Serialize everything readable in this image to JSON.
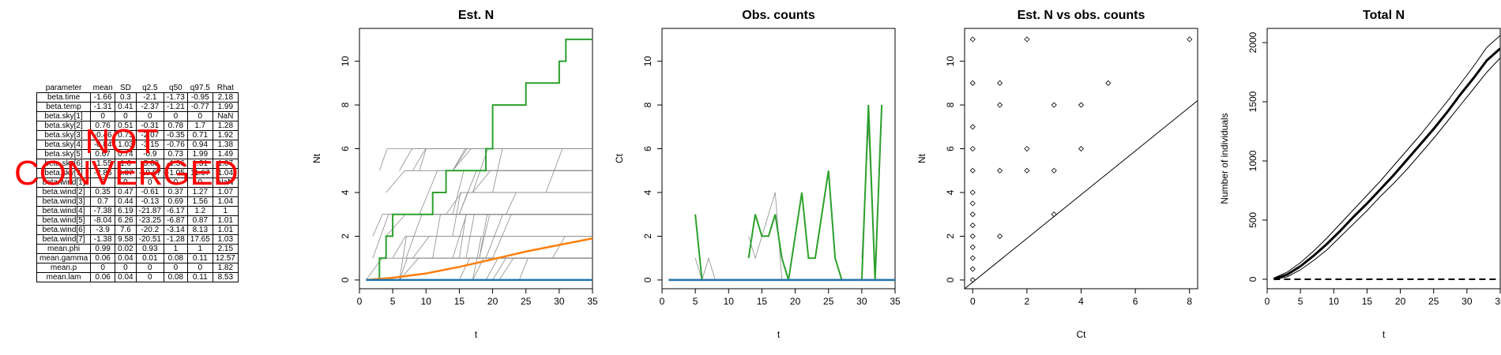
{
  "table": {
    "columns": [
      "parameter",
      "mean",
      "SD",
      "q2.5",
      "q50",
      "q97.5",
      "Rhat"
    ],
    "rows": [
      [
        "beta.time",
        "-1.66",
        "0.3",
        "-2.1",
        "-1.73",
        "-0.95",
        "2.18"
      ],
      [
        "beta.temp",
        "-1.31",
        "0.41",
        "-2.37",
        "-1.21",
        "-0.77",
        "1.99"
      ],
      [
        "beta.sky[1]",
        "0",
        "0",
        "0",
        "0",
        "0",
        "NaN"
      ],
      [
        "beta.sky[2]",
        "0.76",
        "0.51",
        "-0.31",
        "0.78",
        "1.7",
        "1.28"
      ],
      [
        "beta.sky[3]",
        "-0.46",
        "0.73",
        "-2.07",
        "-0.35",
        "0.71",
        "1.92"
      ],
      [
        "beta.sky[4]",
        "-0.84",
        "1.03",
        "-3.15",
        "-0.76",
        "0.94",
        "1.38"
      ],
      [
        "beta.sky[5]",
        "0.67",
        "0.74",
        "-0.9",
        "0.73",
        "1.99",
        "1.49"
      ],
      [
        "beta.sky[6]",
        "-1.55",
        "1.6",
        "-5.03",
        "-1.36",
        "1.31",
        "1.07"
      ],
      [
        "beta.sky[7]",
        "-2.86",
        "6.07",
        "-19.57",
        "-1.05",
        "11.67",
        "1.04"
      ],
      [
        "beta.wind[1]",
        "0",
        "0",
        "0",
        "0",
        "0",
        "NaN"
      ],
      [
        "beta.wind[2]",
        "0.35",
        "0.47",
        "-0.61",
        "0.37",
        "1.27",
        "1.07"
      ],
      [
        "beta.wind[3]",
        "0.7",
        "0.44",
        "-0.13",
        "0.69",
        "1.56",
        "1.04"
      ],
      [
        "beta.wind[4]",
        "-7.38",
        "6.19",
        "-21.87",
        "-6.17",
        "1.2",
        "1"
      ],
      [
        "beta.wind[5]",
        "-8.04",
        "6.26",
        "-23.25",
        "-6.87",
        "0.87",
        "1.01"
      ],
      [
        "beta.wind[6]",
        "-3.9",
        "7.6",
        "-20.2",
        "-3.14",
        "8.13",
        "1.01"
      ],
      [
        "beta.wind[7]",
        "-1.38",
        "9.58",
        "-20.51",
        "-1.28",
        "17.65",
        "1.03"
      ],
      [
        "mean.phi",
        "0.99",
        "0.02",
        "0.93",
        "1",
        "1",
        "2.15"
      ],
      [
        "mean.gamma",
        "0.06",
        "0.04",
        "0.01",
        "0.08",
        "0.11",
        "12.57"
      ],
      [
        "mean.p",
        "0",
        "0",
        "0",
        "0",
        "0",
        "1.82"
      ],
      [
        "mean.lam",
        "0.06",
        "0.04",
        "0",
        "0.08",
        "0.11",
        "8.53"
      ]
    ]
  },
  "overlay_text": "NOT CONVERGED",
  "colors": {
    "green": "#2ca02c",
    "orange": "#ff7f0e",
    "blue": "#1f77b4",
    "gray": "#8c8c8c",
    "red": "#ff0000"
  },
  "chart_data": [
    {
      "type": "line",
      "title": "Est. N",
      "xlabel": "t",
      "ylabel": "Nt",
      "xlim": [
        0,
        35
      ],
      "ylim": [
        -0.4,
        11.5
      ],
      "xticks": [
        0,
        5,
        10,
        15,
        20,
        25,
        30,
        35
      ],
      "yticks": [
        0,
        2,
        4,
        6,
        8,
        10
      ],
      "series": [
        {
          "color": "green",
          "x": [
            1,
            2,
            3,
            4,
            5,
            6,
            7,
            8,
            9,
            10,
            11,
            12,
            13,
            14,
            15,
            16,
            17,
            18,
            19,
            20,
            21,
            22,
            23,
            24,
            25,
            26,
            27,
            28,
            29,
            30,
            31,
            32,
            33,
            34,
            35
          ],
          "y": [
            0,
            0,
            1,
            2,
            3,
            3,
            3,
            3,
            3,
            3,
            4,
            4,
            5,
            5,
            5,
            5,
            5,
            5,
            6,
            8,
            8,
            8,
            8,
            8,
            9,
            9,
            9,
            9,
            9,
            10,
            11,
            11,
            11,
            11,
            11
          ]
        },
        {
          "color": "orange",
          "x": [
            1,
            5,
            10,
            15,
            20,
            25,
            30,
            35
          ],
          "y": [
            0,
            0.1,
            0.3,
            0.6,
            0.95,
            1.3,
            1.6,
            1.9
          ]
        },
        {
          "color": "blue",
          "x": [
            1,
            35
          ],
          "y": [
            0,
            0
          ]
        }
      ]
    },
    {
      "type": "line",
      "title": "Obs. counts",
      "xlabel": "t",
      "ylabel": "Ct",
      "xlim": [
        0,
        35
      ],
      "ylim": [
        -0.4,
        11.5
      ],
      "xticks": [
        0,
        5,
        10,
        15,
        20,
        25,
        30,
        35
      ],
      "yticks": [
        0,
        2,
        4,
        6,
        8,
        10
      ],
      "series": [
        {
          "color": "green",
          "segments": [
            {
              "x": [
                5,
                6,
                7
              ],
              "y": [
                3,
                0,
                0
              ]
            },
            {
              "x": [
                13,
                14,
                15,
                16,
                17,
                18,
                19,
                20,
                21,
                22,
                23,
                24,
                25,
                26,
                27
              ],
              "y": [
                1,
                3,
                2,
                2,
                3,
                1,
                0,
                2,
                4,
                1,
                1,
                3,
                5,
                1,
                0
              ]
            },
            {
              "x": [
                30,
                31,
                32,
                33
              ],
              "y": [
                0,
                8,
                0,
                8
              ]
            }
          ]
        },
        {
          "color": "orange",
          "x": [
            1,
            35
          ],
          "y": [
            0,
            0
          ]
        },
        {
          "color": "blue",
          "x": [
            1,
            35
          ],
          "y": [
            0,
            0
          ]
        }
      ]
    },
    {
      "type": "scatter",
      "title": "Est. N vs obs. counts",
      "xlabel": "Ct",
      "ylabel": "Nt",
      "xlim": [
        -0.3,
        8.3
      ],
      "ylim": [
        -0.4,
        11.5
      ],
      "xticks": [
        0,
        2,
        4,
        6,
        8
      ],
      "yticks": [
        0,
        2,
        4,
        6,
        8,
        10
      ],
      "reference_line": "1:1",
      "points": [
        [
          0,
          0
        ],
        [
          0,
          0.5
        ],
        [
          0,
          1
        ],
        [
          0,
          1.5
        ],
        [
          0,
          2
        ],
        [
          0,
          2.5
        ],
        [
          0,
          3
        ],
        [
          0,
          3.5
        ],
        [
          0,
          4
        ],
        [
          0,
          5
        ],
        [
          0,
          6
        ],
        [
          0,
          7
        ],
        [
          0,
          9
        ],
        [
          0,
          11
        ],
        [
          1,
          2
        ],
        [
          1,
          5
        ],
        [
          1,
          8
        ],
        [
          1,
          9
        ],
        [
          2,
          5
        ],
        [
          2,
          6
        ],
        [
          2,
          11
        ],
        [
          3,
          3
        ],
        [
          3,
          5
        ],
        [
          3,
          8
        ],
        [
          4,
          6
        ],
        [
          4,
          8
        ],
        [
          5,
          9
        ],
        [
          8,
          11
        ]
      ]
    },
    {
      "type": "line",
      "title": "Total N",
      "xlabel": "t",
      "ylabel": "Number of individuals",
      "xlim": [
        0,
        35
      ],
      "ylim": [
        -80,
        2120
      ],
      "xticks": [
        0,
        5,
        10,
        15,
        20,
        25,
        30,
        35
      ],
      "yticks": [
        0,
        500,
        1000,
        1500,
        2000
      ],
      "series": [
        {
          "style": "thick",
          "x": [
            1,
            3,
            5,
            7,
            9,
            11,
            13,
            15,
            17,
            19,
            21,
            23,
            25,
            27,
            29,
            31,
            33,
            35
          ],
          "y": [
            0,
            40,
            110,
            200,
            300,
            410,
            530,
            640,
            760,
            880,
            1010,
            1140,
            1270,
            1410,
            1560,
            1700,
            1850,
            1950
          ]
        },
        {
          "style": "thin",
          "x": [
            1,
            3,
            5,
            7,
            9,
            11,
            13,
            15,
            17,
            19,
            21,
            23,
            25,
            27,
            29,
            31,
            33,
            35
          ],
          "y": [
            10,
            60,
            140,
            240,
            350,
            470,
            590,
            710,
            830,
            960,
            1090,
            1220,
            1360,
            1500,
            1650,
            1800,
            1960,
            2060
          ]
        },
        {
          "style": "thin",
          "x": [
            1,
            3,
            5,
            7,
            9,
            11,
            13,
            15,
            17,
            19,
            21,
            23,
            25,
            27,
            29,
            31,
            33,
            35
          ],
          "y": [
            0,
            20,
            80,
            160,
            250,
            360,
            470,
            580,
            700,
            810,
            930,
            1060,
            1190,
            1330,
            1470,
            1610,
            1750,
            1870
          ]
        },
        {
          "style": "dashed",
          "x": [
            1,
            35
          ],
          "y": [
            0,
            0
          ]
        }
      ]
    }
  ]
}
